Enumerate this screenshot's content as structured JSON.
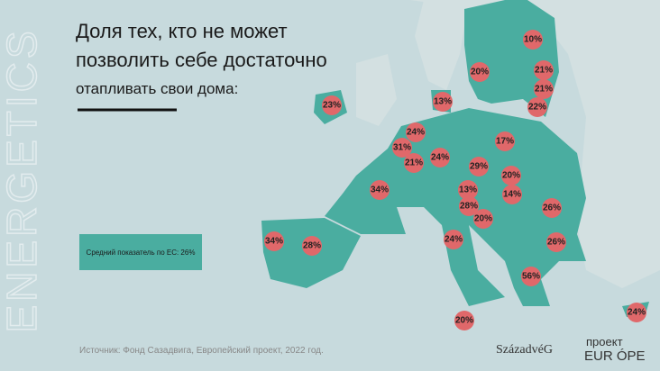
{
  "header": {
    "title_lines": [
      "Доля тех, кто не может",
      "позволить себе достаточно",
      "отапливать свои дома:"
    ],
    "side_text": "ENERGETICS"
  },
  "markers": [
    {
      "label": "10%"
    },
    {
      "label": "20%"
    },
    {
      "label": "21%"
    },
    {
      "label": "21%"
    },
    {
      "label": "22%"
    },
    {
      "label": "13%"
    },
    {
      "label": "23%"
    },
    {
      "label": "24%"
    },
    {
      "label": "31%"
    },
    {
      "label": "21%"
    },
    {
      "label": "24%"
    },
    {
      "label": "17%"
    },
    {
      "label": "29%"
    },
    {
      "label": "20%"
    },
    {
      "label": "34%"
    },
    {
      "label": "13%"
    },
    {
      "label": "14%"
    },
    {
      "label": "28%"
    },
    {
      "label": "20%"
    },
    {
      "label": "26%"
    },
    {
      "label": "24%"
    },
    {
      "label": "26%"
    },
    {
      "label": "34%"
    },
    {
      "label": "28%"
    },
    {
      "label": "56%"
    },
    {
      "label": "20%"
    },
    {
      "label": "24%"
    }
  ],
  "legend": {
    "text": "Средний показатель по ЕС: 26%"
  },
  "footer": {
    "source": "Источник: Фонд Сазадвига, Европейский проект, 2022 год.",
    "logo": "SzázadvéG",
    "project_label": "проект",
    "project_name": "EUR ÓPE"
  }
}
